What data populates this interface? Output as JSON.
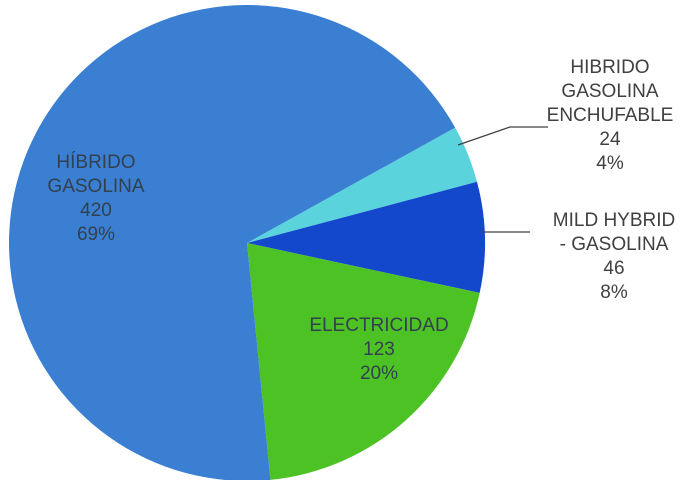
{
  "chart_data": {
    "type": "pie",
    "title": "",
    "slices": [
      {
        "label_lines": [
          "HIBRIDO",
          "GASOLINA",
          "ENCHUFABLE"
        ],
        "value": 24,
        "percent": "4%",
        "color": "#5bd3dc"
      },
      {
        "label_lines": [
          "MILD HYBRID",
          "- GASOLINA"
        ],
        "value": 46,
        "percent": "8%",
        "color": "#1448cc"
      },
      {
        "label_lines": [
          "ELECTRICIDAD"
        ],
        "value": 123,
        "percent": "20%",
        "color": "#4dc225"
      },
      {
        "label_lines": [
          "HÍBRIDO",
          "GASOLINA"
        ],
        "value": 420,
        "percent": "69%",
        "color": "#3a7fd2"
      }
    ],
    "start_angle_deg": 61,
    "direction": "clockwise",
    "legend": "none",
    "data_labels": "category, value, percent"
  }
}
